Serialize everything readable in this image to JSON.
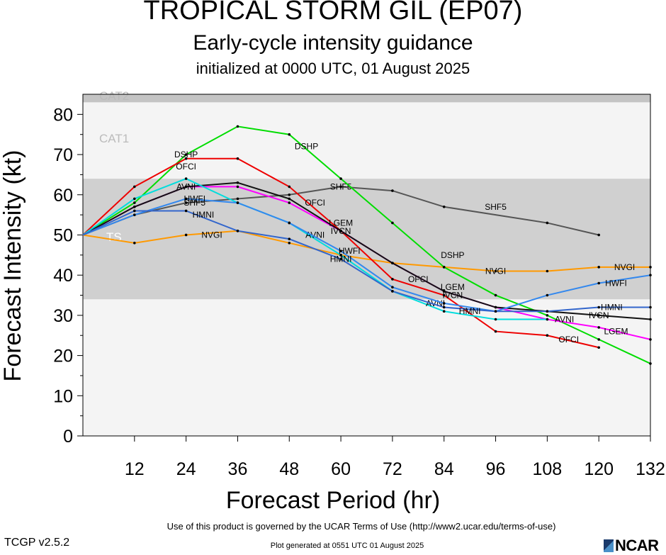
{
  "header": {
    "title": "TROPICAL STORM GIL (EP07)",
    "subtitle": "Early-cycle intensity guidance",
    "init": "initialized at 0000 UTC, 01 August 2025"
  },
  "footer": {
    "terms": "Use of this product is governed by the UCAR Terms of Use (http://www2.ucar.edu/terms-of-use)",
    "version": "TCGP v2.5.2",
    "generated": "Plot generated at 0551 UTC   01 August 2025",
    "logo": "NCAR"
  },
  "chart_data": {
    "type": "line",
    "title": "TROPICAL STORM GIL (EP07)",
    "xlabel": "Forecast Period (hr)",
    "ylabel": "Forecast Intensity (kt)",
    "xlim": [
      0,
      132
    ],
    "ylim": [
      0,
      85
    ],
    "xticks": [
      12,
      24,
      36,
      48,
      60,
      72,
      84,
      96,
      108,
      120,
      132
    ],
    "yticks": [
      0,
      10,
      20,
      30,
      40,
      50,
      60,
      70,
      80
    ],
    "bands": [
      {
        "name": "TS",
        "from": 34,
        "to": 64,
        "color": "#d0d0d0"
      },
      {
        "name": "CAT1",
        "from": 64,
        "to": 83,
        "color": "#f4f4f4"
      },
      {
        "name": "CAT2",
        "from": 83,
        "to": 85,
        "color": "#c4c4c4"
      }
    ],
    "series": [
      {
        "name": "SHF5",
        "color": "#555555",
        "x": [
          0,
          12,
          24,
          36,
          48,
          60,
          72,
          84,
          108,
          120
        ],
        "y": [
          50,
          55,
          58,
          59,
          60,
          62,
          61,
          57,
          53,
          50
        ],
        "labels": [
          [
            26,
            58
          ],
          [
            60,
            62
          ],
          [
            96,
            57
          ]
        ]
      },
      {
        "name": "NVGI",
        "color": "#ff9900",
        "x": [
          0,
          12,
          24,
          36,
          48,
          60,
          72,
          84,
          96,
          108,
          120,
          132
        ],
        "y": [
          50,
          48,
          50,
          51,
          48,
          45,
          43,
          42,
          41,
          41,
          42,
          42
        ],
        "labels": [
          [
            30,
            50
          ],
          [
            96,
            41
          ],
          [
            126,
            42
          ]
        ]
      },
      {
        "name": "DSHP",
        "color": "#00dd00",
        "x": [
          0,
          12,
          24,
          36,
          48,
          60,
          72,
          84,
          96,
          108,
          120,
          132
        ],
        "y": [
          50,
          58,
          70,
          77,
          75,
          64,
          53,
          42,
          35,
          30,
          24,
          18
        ],
        "labels": [
          [
            24,
            70
          ],
          [
            52,
            72
          ],
          [
            86,
            45
          ]
        ]
      },
      {
        "name": "OFCI",
        "color": "#ee0000",
        "x": [
          0,
          12,
          24,
          36,
          48,
          60,
          72,
          84,
          96,
          108,
          120
        ],
        "y": [
          50,
          62,
          69,
          69,
          62,
          51,
          39,
          35,
          26,
          25,
          22
        ],
        "labels": [
          [
            24,
            67
          ],
          [
            54,
            58
          ],
          [
            78,
            39
          ],
          [
            113,
            24
          ]
        ]
      },
      {
        "name": "LGEM",
        "color": "#ff00ff",
        "x": [
          0,
          12,
          24,
          36,
          48,
          60,
          72,
          84,
          96,
          108,
          120,
          132
        ],
        "y": [
          50,
          57,
          62,
          62,
          58,
          51,
          43,
          36,
          32,
          29,
          27,
          24
        ],
        "labels": [
          [
            60,
            53
          ],
          [
            86,
            37
          ],
          [
            124,
            26
          ]
        ]
      },
      {
        "name": "IVCN",
        "color": "#111111",
        "x": [
          0,
          12,
          24,
          36,
          48,
          60,
          72,
          84,
          96,
          108,
          120,
          132
        ],
        "y": [
          50,
          57,
          62,
          63,
          59,
          51,
          43,
          36,
          32,
          31,
          30,
          29
        ],
        "labels": [
          [
            60,
            51
          ],
          [
            86,
            35
          ],
          [
            120,
            30
          ]
        ]
      },
      {
        "name": "AVNI",
        "color": "#00dddd",
        "x": [
          0,
          12,
          24,
          36,
          48,
          60,
          72,
          84,
          96,
          108
        ],
        "y": [
          50,
          59,
          64,
          58,
          53,
          45,
          36,
          31,
          29,
          29
        ],
        "labels": [
          [
            24,
            62
          ],
          [
            54,
            50
          ],
          [
            82,
            33
          ],
          [
            112,
            29
          ]
        ]
      },
      {
        "name": "HWFI",
        "color": "#3388ee",
        "x": [
          0,
          12,
          24,
          36,
          48,
          60,
          72,
          84,
          96,
          108,
          120,
          132
        ],
        "y": [
          50,
          55,
          59,
          58,
          53,
          46,
          37,
          33,
          31,
          35,
          38,
          40
        ],
        "labels": [
          [
            26,
            59
          ],
          [
            62,
            46
          ],
          [
            124,
            38
          ]
        ]
      },
      {
        "name": "HMNI",
        "color": "#3366cc",
        "x": [
          0,
          12,
          24,
          36,
          48,
          60,
          72,
          84,
          96,
          108,
          120,
          132
        ],
        "y": [
          50,
          56,
          56,
          51,
          49,
          44,
          36,
          32,
          31,
          31,
          32,
          32
        ],
        "labels": [
          [
            28,
            55
          ],
          [
            60,
            44
          ],
          [
            90,
            31
          ],
          [
            123,
            32
          ]
        ]
      }
    ]
  }
}
